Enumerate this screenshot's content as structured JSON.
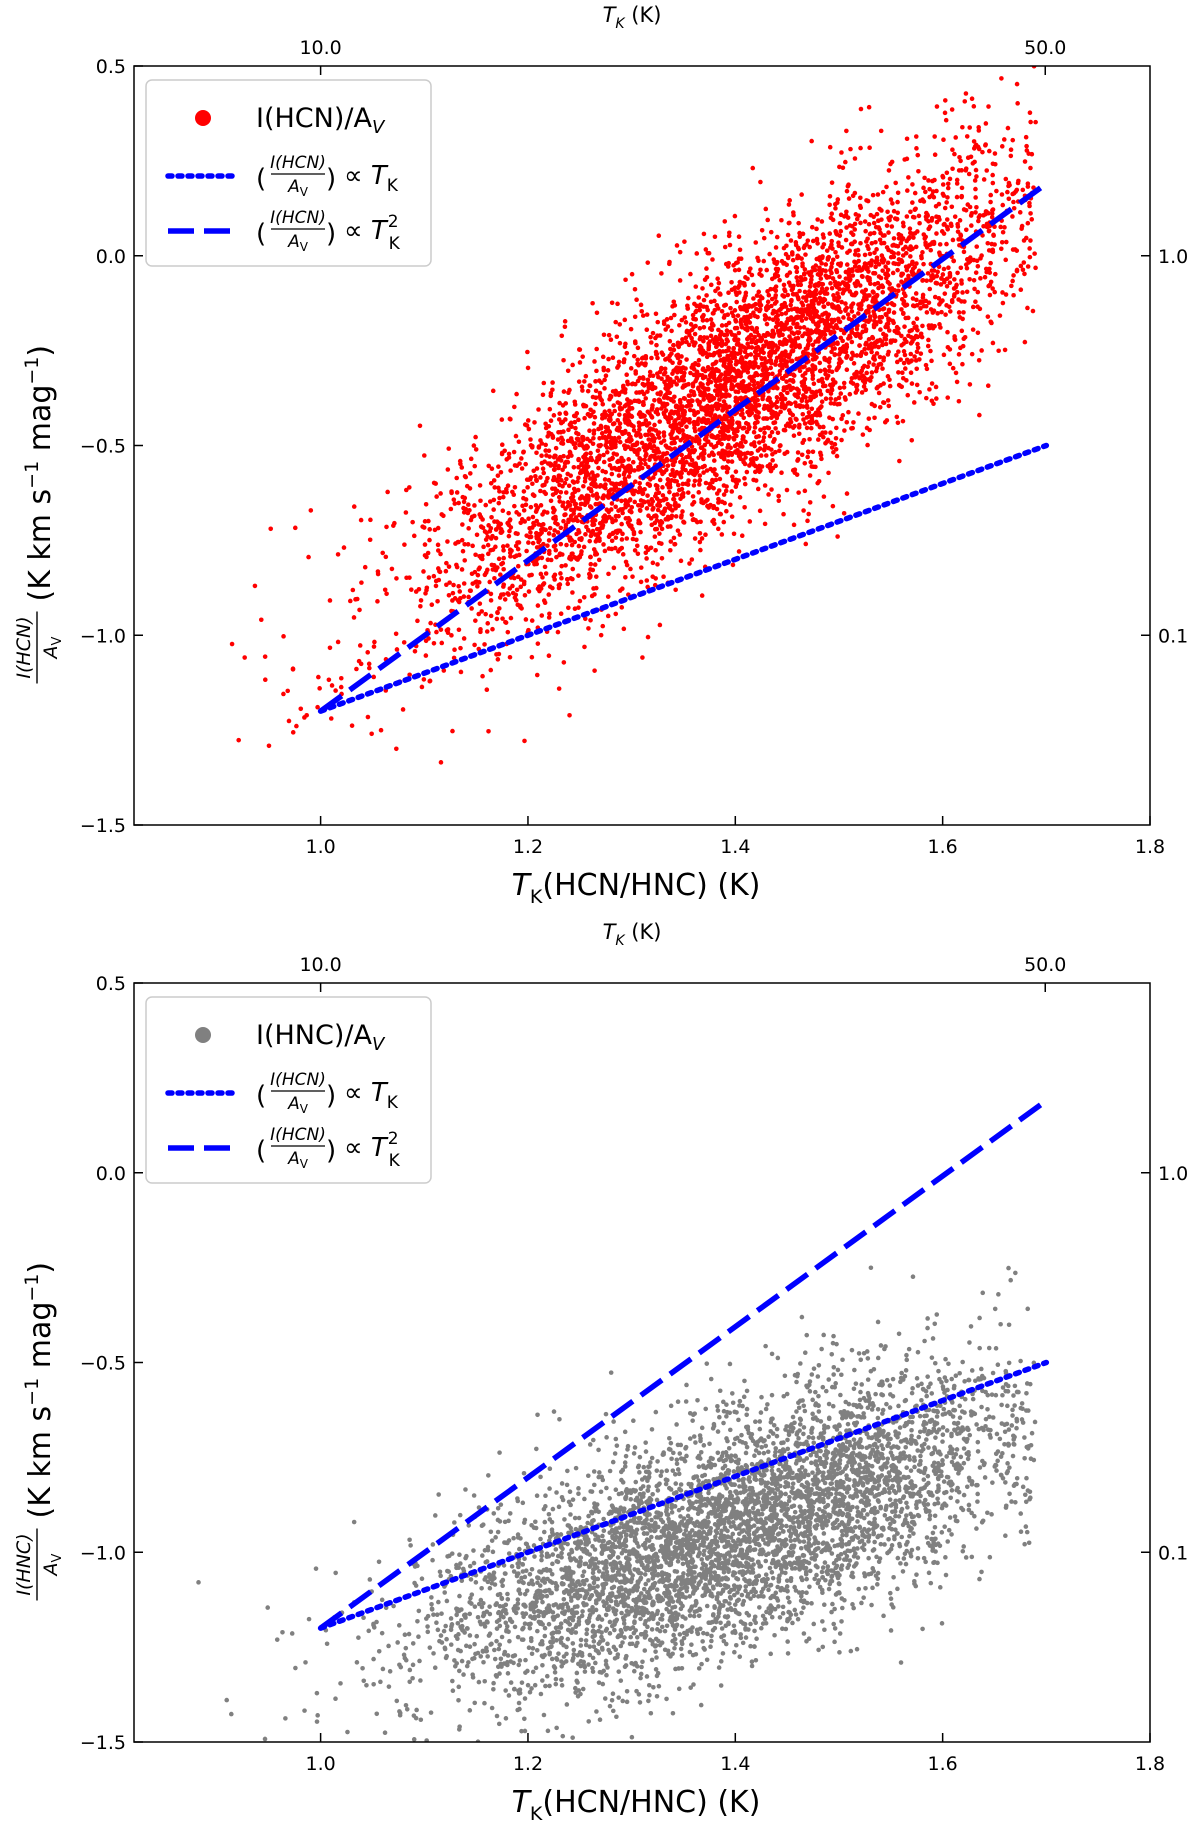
{
  "chart_data": [
    {
      "type": "scatter",
      "panel": "top",
      "xlim": [
        0.82,
        1.8
      ],
      "ylim": [
        -1.5,
        0.5
      ],
      "x_ticks": [
        1.0,
        1.2,
        1.4,
        1.6,
        1.8
      ],
      "x_tick_labels": [
        "1.0",
        "1.2",
        "1.4",
        "1.6",
        "1.8"
      ],
      "y_ticks": [
        -1.5,
        -1.0,
        -0.5,
        0.0,
        0.5
      ],
      "y_tick_labels": [
        "−1.5",
        "−1.0",
        "−0.5",
        "0.0",
        "0.5"
      ],
      "top_axis": {
        "label_base": "T",
        "label_sub": "K",
        "label_unit": " (K)",
        "ticks": [
          1.0,
          1.69897
        ],
        "tick_labels": [
          "10.0",
          "50.0"
        ]
      },
      "right_axis": {
        "ticks": [
          0.0,
          -1.0
        ],
        "tick_labels": [
          "1.0",
          "0.1"
        ]
      },
      "xlabel": {
        "base": "T",
        "sub": "K",
        "rest": "(HCN/HNC) (K)"
      },
      "ylabel": {
        "frac_num": "I(HCN)",
        "frac_den_base": "A",
        "frac_den_sub": "V",
        "rest": "(K km s",
        "exp": "−1",
        "rest2": " mag",
        "exp2": "−1",
        "close": ")"
      },
      "scatter_color": "#ff0000",
      "cloud": {
        "n": 5200,
        "x_center": 1.4,
        "x_spread": 0.15,
        "x_min": 0.88,
        "x_max": 1.69,
        "y_intercept": -1.05,
        "y_slope": 1.75,
        "y_scatter": 0.17,
        "seed": 12345
      },
      "series": [
        {
          "name": "I(HCN)/A_V",
          "kind": "points"
        },
        {
          "name": "(I(HCN)/A_V) ∝ T_K",
          "kind": "dotted",
          "x": [
            1.0,
            1.7
          ],
          "y": [
            -1.2,
            -0.5
          ],
          "color": "#0000ff"
        },
        {
          "name": "(I(HCN)/A_V) ∝ T_K^2",
          "kind": "dashed",
          "x": [
            1.0,
            1.7
          ],
          "y": [
            -1.2,
            0.19
          ],
          "color": "#0000ff"
        }
      ],
      "legend": {
        "position": "upper-left",
        "entry1": {
          "base": "I(HCN)/A",
          "sub": "V"
        },
        "entry2": {
          "num": "I(HCN)",
          "den_base": "A",
          "den_sub": "V",
          "prop": "∝ T",
          "sub": "K"
        },
        "entry3": {
          "num": "I(HCN)",
          "den_base": "A",
          "den_sub": "V",
          "prop": "∝ T",
          "sub": "K",
          "sup": "2"
        }
      }
    },
    {
      "type": "scatter",
      "panel": "bottom",
      "xlim": [
        0.82,
        1.8
      ],
      "ylim": [
        -1.5,
        0.5
      ],
      "x_ticks": [
        1.0,
        1.2,
        1.4,
        1.6,
        1.8
      ],
      "x_tick_labels": [
        "1.0",
        "1.2",
        "1.4",
        "1.6",
        "1.8"
      ],
      "y_ticks": [
        -1.5,
        -1.0,
        -0.5,
        0.0,
        0.5
      ],
      "y_tick_labels": [
        "−1.5",
        "−1.0",
        "−0.5",
        "0.0",
        "0.5"
      ],
      "top_axis": {
        "label_base": "T",
        "label_sub": "K",
        "label_unit": " (K)",
        "ticks": [
          1.0,
          1.69897
        ],
        "tick_labels": [
          "10.0",
          "50.0"
        ]
      },
      "right_axis": {
        "ticks": [
          0.0,
          -1.0
        ],
        "tick_labels": [
          "1.0",
          "0.1"
        ]
      },
      "xlabel": {
        "base": "T",
        "sub": "K",
        "rest": "(HCN/HNC) (K)"
      },
      "ylabel": {
        "frac_num": "I(HNC)",
        "frac_den_base": "A",
        "frac_den_sub": "V",
        "rest": "(K km s",
        "exp": "−1",
        "rest2": " mag",
        "exp2": "−1",
        "close": ")"
      },
      "scatter_color": "#808080",
      "cloud": {
        "n": 5200,
        "x_center": 1.4,
        "x_spread": 0.15,
        "x_min": 0.88,
        "x_max": 1.69,
        "y_intercept": -1.32,
        "y_slope": 0.95,
        "y_scatter": 0.15,
        "seed": 67890
      },
      "series": [
        {
          "name": "I(HNC)/A_V",
          "kind": "points"
        },
        {
          "name": "(I(HCN)/A_V) ∝ T_K",
          "kind": "dotted",
          "x": [
            1.0,
            1.7
          ],
          "y": [
            -1.2,
            -0.5
          ],
          "color": "#0000ff"
        },
        {
          "name": "(I(HCN)/A_V) ∝ T_K^2",
          "kind": "dashed",
          "x": [
            1.0,
            1.7
          ],
          "y": [
            -1.2,
            0.19
          ],
          "color": "#0000ff"
        }
      ],
      "legend": {
        "position": "upper-left",
        "entry1": {
          "base": "I(HNC)/A",
          "sub": "V"
        },
        "entry2": {
          "num": "I(HCN)",
          "den_base": "A",
          "den_sub": "V",
          "prop": "∝ T",
          "sub": "K"
        },
        "entry3": {
          "num": "I(HCN)",
          "den_base": "A",
          "den_sub": "V",
          "prop": "∝ T",
          "sub": "K",
          "sup": "2"
        }
      }
    }
  ]
}
